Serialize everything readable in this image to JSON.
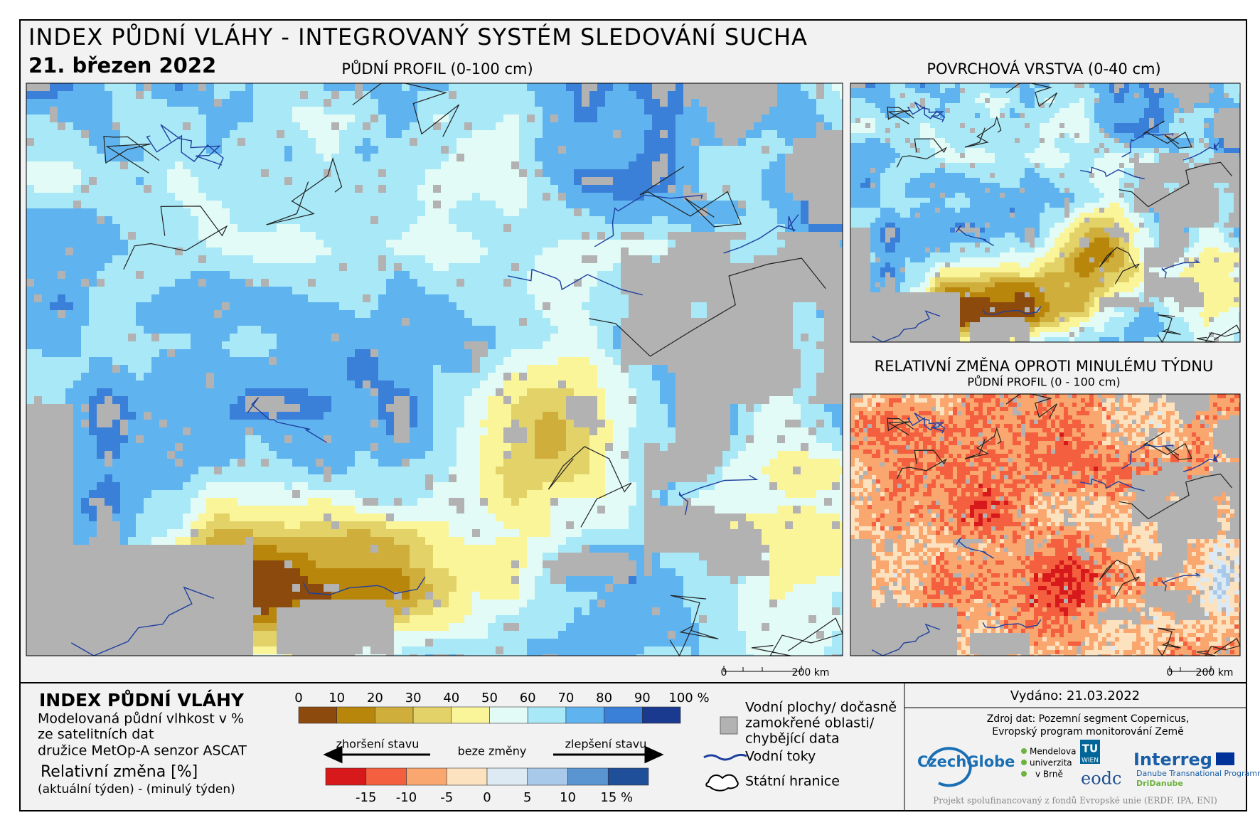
{
  "header": {
    "title": "INDEX PŮDNÍ VLÁHY - INTEGROVANÝ SYSTÉM SLEDOVÁNÍ SUCHA",
    "date": "21. březen 2022"
  },
  "maps": [
    {
      "title": "PŮDNÍ PROFIL (0-100 cm)",
      "scale": [
        "0",
        "200 km"
      ]
    },
    {
      "title": "POVRCHOVÁ VRSTVA (0-40 cm)"
    },
    {
      "title": "RELATIVNÍ ZMĚNA OPROTI MINULÉMU TÝDNU",
      "subtitle": "PŮDNÍ PROFIL (0 - 100 cm)",
      "scale": [
        "0",
        "200 km"
      ]
    }
  ],
  "legend": {
    "title": "INDEX PŮDNÍ VLÁHY",
    "description": [
      "Modelovaná půdní vlhkost v %",
      "ze satelitních dat",
      "družice MetOp-A senzor ASCAT"
    ],
    "change_title": "Relativní změna [%]",
    "change_formula": "(aktuální týden) - (minulý týden)",
    "index_ticks": [
      "0",
      "10",
      "20",
      "30",
      "40",
      "50",
      "60",
      "70",
      "80",
      "90",
      "100 %"
    ],
    "worse": "zhoršení stavu",
    "same": "beze změny",
    "better": "zlepšení stavu",
    "change_ticks": [
      "-15",
      "-10",
      "-5",
      "0",
      "5",
      "10",
      "15 %"
    ],
    "water": [
      "Vodní plochy/ dočasně",
      "zamokřené oblasti/",
      "chybějící data"
    ],
    "rivers": "Vodní toky",
    "borders": "Státní hranice"
  },
  "footer": {
    "issued": "Vydáno: 21.03.2022",
    "source": [
      "Zdroj dat: Pozemní segment Copernicus,",
      "Evropský program monitorování Země"
    ],
    "logos": {
      "czechglobe": "CzechGlobe",
      "mendel": [
        "Mendelova",
        "univerzita",
        "v Brně"
      ],
      "tu": "TU",
      "wien": "WIEN",
      "eodc": "eodc",
      "interreg": "Interreg",
      "programme": "Danube Transnational Programme",
      "dridanube": "DriDanube"
    },
    "funding": "Projekt spolufinancovaný z fondů Evropské unie (ERDF, IPA, ENI)"
  }
}
